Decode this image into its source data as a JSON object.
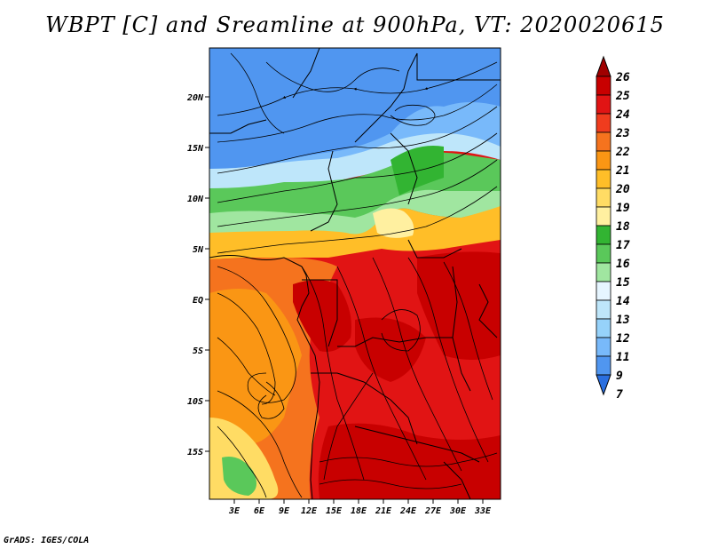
{
  "title": "WBPT [C] and Sreamline at 900hPa, VT: 2020020615",
  "credit": "GrADS: IGES/COLA",
  "map": {
    "lat_labels": [
      "20N",
      "15N",
      "10N",
      "5N",
      "EQ",
      "5S",
      "10S",
      "15S"
    ],
    "lon_labels": [
      "3E",
      "6E",
      "9E",
      "12E",
      "15E",
      "18E",
      "21E",
      "24E",
      "27E",
      "30E",
      "33E"
    ]
  },
  "colorbar": {
    "labels": [
      "26",
      "25",
      "24",
      "23",
      "22",
      "21",
      "20",
      "19",
      "18",
      "17",
      "16",
      "15",
      "14",
      "13",
      "12",
      "11",
      "9",
      "7"
    ],
    "colors": [
      "#a00000",
      "#c80000",
      "#e11414",
      "#f03c1e",
      "#f5731e",
      "#fa9614",
      "#ffbe28",
      "#ffdc64",
      "#fff0a0",
      "#32b432",
      "#5ac85a",
      "#a0e6a0",
      "#e6f5ff",
      "#bee6fa",
      "#96d2fa",
      "#78b9fa",
      "#5096f0",
      "#2a6fe0"
    ]
  },
  "legend_colors": {
    "cold": "#2a6fe0",
    "cool": "#96d2fa",
    "mild": "#5ac85a",
    "warm": "#f5731e",
    "hot": "#c80000"
  }
}
